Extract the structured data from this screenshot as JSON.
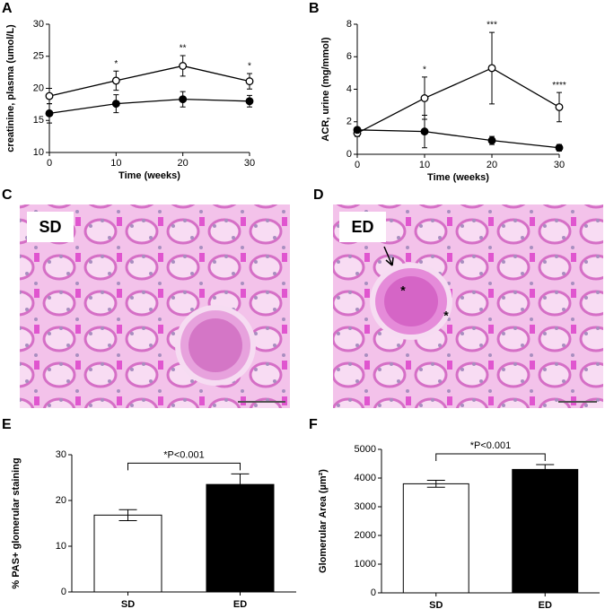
{
  "panel_labels": [
    "A",
    "B",
    "C",
    "D",
    "E",
    "F"
  ],
  "images": [
    {
      "label": "SD",
      "annotations": []
    },
    {
      "label": "ED",
      "annotations": [
        "*",
        "*"
      ]
    }
  ],
  "chart_data": [
    {
      "type": "line",
      "y_label": "creatinine, plasma (umol/L)",
      "x_label": "Time (weeks)",
      "x": [
        0,
        10,
        20,
        30
      ],
      "xlim": [
        0,
        30
      ],
      "xticks": [
        0,
        10,
        20,
        30
      ],
      "ylim": [
        10,
        30
      ],
      "yticks": [
        10,
        15,
        20,
        25,
        30
      ],
      "annotations": [
        null,
        "*",
        "**",
        "*"
      ],
      "series": [
        {
          "marker": "open",
          "color": "#000000",
          "values": [
            18.8,
            21.2,
            23.5,
            21.1
          ],
          "errors": [
            1.2,
            1.5,
            1.6,
            1.2
          ]
        },
        {
          "marker": "filled",
          "color": "#000000",
          "values": [
            16.1,
            17.6,
            18.3,
            18.0
          ],
          "errors": [
            1.5,
            1.4,
            1.2,
            0.9
          ]
        }
      ]
    },
    {
      "type": "line",
      "y_label": "ACR, urine (mg/mmol)",
      "x_label": "Time (weeks)",
      "x": [
        0,
        10,
        20,
        30
      ],
      "xlim": [
        0,
        30
      ],
      "xticks": [
        0,
        10,
        20,
        30
      ],
      "ylim": [
        0,
        8
      ],
      "yticks": [
        0,
        2,
        4,
        6,
        8
      ],
      "annotations": [
        null,
        "*",
        "***",
        "****"
      ],
      "series": [
        {
          "marker": "open",
          "color": "#000000",
          "values": [
            1.3,
            3.45,
            5.3,
            2.9
          ],
          "errors": [
            0.2,
            1.3,
            2.2,
            0.9
          ]
        },
        {
          "marker": "filled",
          "color": "#000000",
          "values": [
            1.5,
            1.4,
            0.85,
            0.4
          ],
          "errors": [
            0.15,
            1.0,
            0.25,
            0.2
          ]
        }
      ]
    },
    {
      "type": "bar",
      "y_label": "% PAS+ glomerular staining",
      "annotation": "*P<0.001",
      "categories": [
        "SD",
        "ED"
      ],
      "values": [
        16.8,
        23.5
      ],
      "errors": [
        1.2,
        2.3
      ],
      "colors": [
        "#ffffff",
        "#000000"
      ],
      "ylim": [
        0,
        30
      ],
      "yticks": [
        0,
        10,
        20,
        30
      ]
    },
    {
      "type": "bar",
      "y_label": "Glomerular Area (µm²)",
      "annotation": "*P<0.001",
      "categories": [
        "SD",
        "ED"
      ],
      "values": [
        3800,
        4300
      ],
      "errors": [
        120,
        170
      ],
      "colors": [
        "#ffffff",
        "#000000"
      ],
      "ylim": [
        0,
        5000
      ],
      "yticks": [
        0,
        1000,
        2000,
        3000,
        4000,
        5000
      ]
    }
  ]
}
